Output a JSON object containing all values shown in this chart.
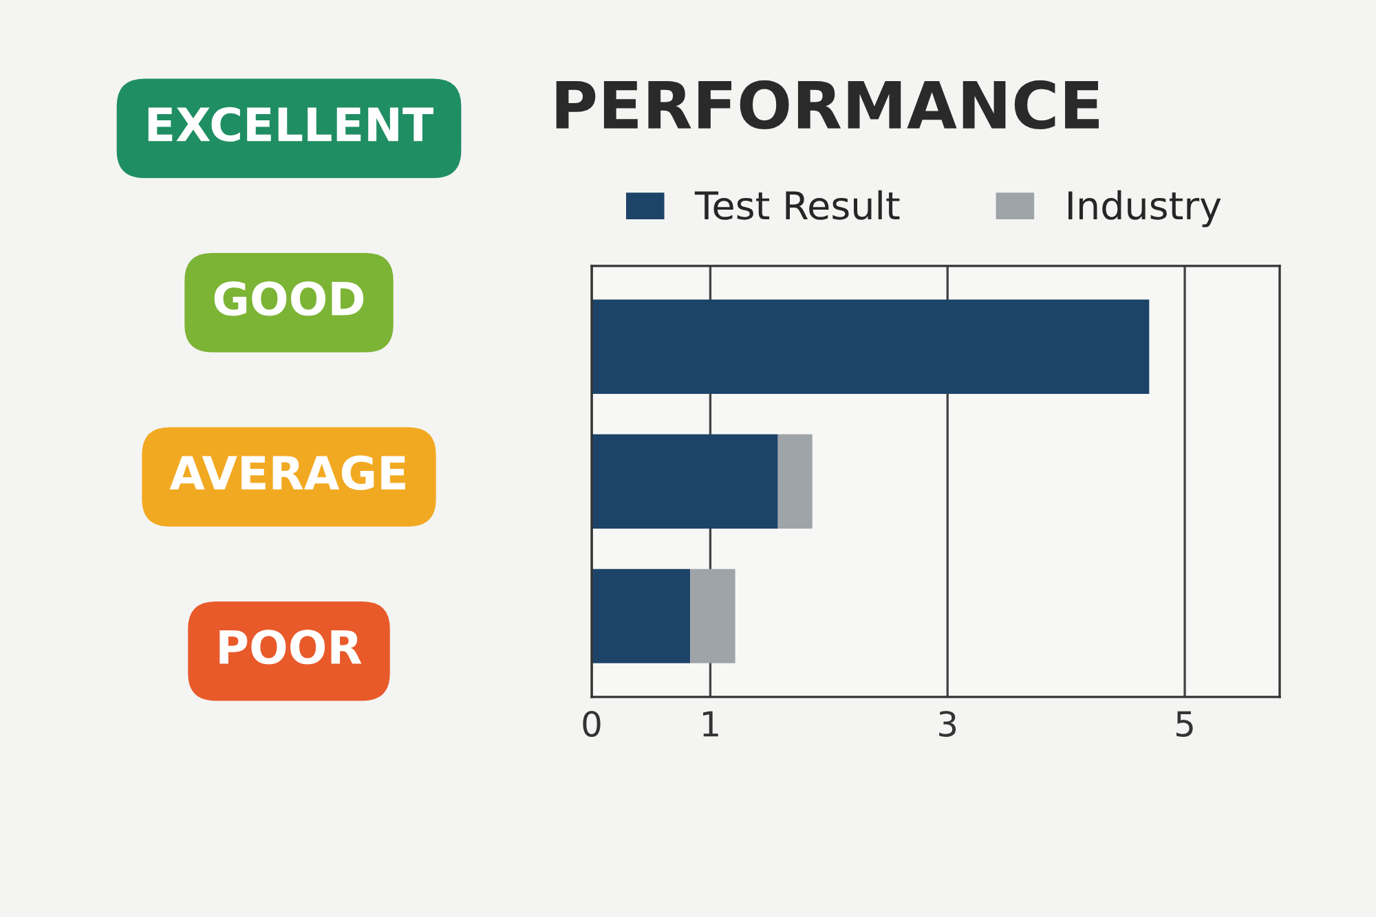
{
  "chart_data": {
    "type": "bar",
    "title": "PERFORMANCE",
    "orientation": "horizontal",
    "stacked": true,
    "categories": [
      null,
      null,
      null
    ],
    "series": [
      {
        "name": "Test Result",
        "color": "#1d4468",
        "values": [
          4.7,
          1.57,
          0.83
        ]
      },
      {
        "name": "Industry",
        "color": "#9ea4a8",
        "values": [
          null,
          0.29,
          0.38
        ]
      }
    ],
    "xlim": [
      0,
      5.8
    ],
    "xticks": [
      0,
      1,
      3,
      5
    ],
    "grid": "x",
    "legend": "top",
    "annotations": [
      "EXCELLENT",
      "GOOD",
      "AVERAGE",
      "POOR"
    ]
  }
}
